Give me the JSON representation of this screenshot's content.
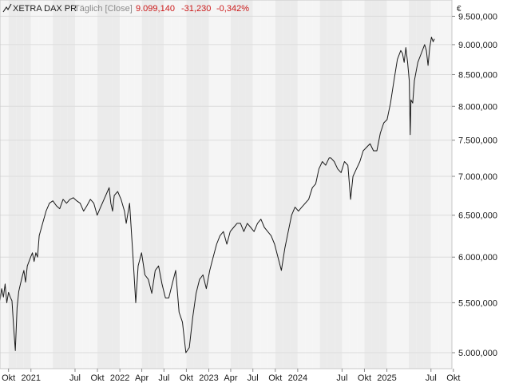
{
  "header": {
    "icon_name": "line-chart-icon",
    "instrument": "XETRA DAX PR",
    "mode": "Täglich [Close]",
    "last_value": "9.099,140",
    "change_abs": "-31,230",
    "change_pct": "-0,342%"
  },
  "colors": {
    "line": "#1a1a1a",
    "negative": "#cc1a1a",
    "mode_text": "#8a8a8a",
    "band_dark": "#ebebeb",
    "band_light": "#f5f5f5",
    "gridline": "#dcdcdc"
  },
  "chart_data": {
    "type": "line",
    "title": "XETRA DAX PR",
    "y_unit": "€",
    "y_scale": "log",
    "ylim": [
      4850,
      9800
    ],
    "xlim": [
      "2020-08-27",
      "2025-09-25"
    ],
    "grid": true,
    "y_ticks": [
      5000,
      5500,
      6000,
      6500,
      7000,
      7500,
      8000,
      8500,
      9000,
      9500
    ],
    "y_tick_labels": [
      "5.000,000",
      "5.500,000",
      "6.000,000",
      "6.500,000",
      "7.000,000",
      "7.500,000",
      "8.000,000",
      "8.500,000",
      "9.000,000",
      "9.500,000"
    ],
    "x_ticks": [
      {
        "date": "2020-10-01",
        "label": "Okt"
      },
      {
        "date": "2021-01-01",
        "label": "2021"
      },
      {
        "date": "2021-07-01",
        "label": "Jul"
      },
      {
        "date": "2021-10-01",
        "label": "Okt"
      },
      {
        "date": "2022-01-01",
        "label": "2022"
      },
      {
        "date": "2022-04-01",
        "label": "Apr"
      },
      {
        "date": "2022-07-01",
        "label": "Jul"
      },
      {
        "date": "2022-10-01",
        "label": "Okt"
      },
      {
        "date": "2023-01-01",
        "label": "2023"
      },
      {
        "date": "2023-04-01",
        "label": "Apr"
      },
      {
        "date": "2023-07-01",
        "label": "Jul"
      },
      {
        "date": "2023-10-01",
        "label": "Okt"
      },
      {
        "date": "2024-01-01",
        "label": "2024"
      },
      {
        "date": "2024-07-01",
        "label": "Jul"
      },
      {
        "date": "2024-10-01",
        "label": "Okt"
      },
      {
        "date": "2025-01-01",
        "label": "2025"
      },
      {
        "date": "2025-07-01",
        "label": "Jul"
      },
      {
        "date": "2025-10-01",
        "label": "Okt"
      }
    ],
    "series": [
      {
        "name": "XETRA DAX PR",
        "points": [
          [
            "2020-08-27",
            5520
          ],
          [
            "2020-09-03",
            5650
          ],
          [
            "2020-09-10",
            5560
          ],
          [
            "2020-09-17",
            5700
          ],
          [
            "2020-09-24",
            5500
          ],
          [
            "2020-10-01",
            5610
          ],
          [
            "2020-10-08",
            5560
          ],
          [
            "2020-10-15",
            5520
          ],
          [
            "2020-10-22",
            5250
          ],
          [
            "2020-10-29",
            5020
          ],
          [
            "2020-11-05",
            5450
          ],
          [
            "2020-11-12",
            5620
          ],
          [
            "2020-11-19",
            5700
          ],
          [
            "2020-11-26",
            5780
          ],
          [
            "2020-12-03",
            5850
          ],
          [
            "2020-12-10",
            5720
          ],
          [
            "2020-12-17",
            5900
          ],
          [
            "2020-12-31",
            6000
          ],
          [
            "2021-01-07",
            6050
          ],
          [
            "2021-01-14",
            5950
          ],
          [
            "2021-01-21",
            6050
          ],
          [
            "2021-01-28",
            6000
          ],
          [
            "2021-02-04",
            6250
          ],
          [
            "2021-02-18",
            6400
          ],
          [
            "2021-03-04",
            6550
          ],
          [
            "2021-03-18",
            6650
          ],
          [
            "2021-04-01",
            6680
          ],
          [
            "2021-04-15",
            6620
          ],
          [
            "2021-04-29",
            6580
          ],
          [
            "2021-05-13",
            6700
          ],
          [
            "2021-05-27",
            6650
          ],
          [
            "2021-06-10",
            6700
          ],
          [
            "2021-06-24",
            6720
          ],
          [
            "2021-07-08",
            6680
          ],
          [
            "2021-07-22",
            6650
          ],
          [
            "2021-08-05",
            6550
          ],
          [
            "2021-08-19",
            6620
          ],
          [
            "2021-09-02",
            6700
          ],
          [
            "2021-09-16",
            6650
          ],
          [
            "2021-09-30",
            6500
          ],
          [
            "2021-10-14",
            6600
          ],
          [
            "2021-10-28",
            6700
          ],
          [
            "2021-11-11",
            6800
          ],
          [
            "2021-11-18",
            6850
          ],
          [
            "2021-11-25",
            6650
          ],
          [
            "2021-12-02",
            6550
          ],
          [
            "2021-12-09",
            6750
          ],
          [
            "2021-12-23",
            6800
          ],
          [
            "2022-01-06",
            6700
          ],
          [
            "2022-01-20",
            6550
          ],
          [
            "2022-01-27",
            6400
          ],
          [
            "2022-02-10",
            6650
          ],
          [
            "2022-02-24",
            6000
          ],
          [
            "2022-03-07",
            5500
          ],
          [
            "2022-03-17",
            5900
          ],
          [
            "2022-03-31",
            6050
          ],
          [
            "2022-04-14",
            5800
          ],
          [
            "2022-04-28",
            5750
          ],
          [
            "2022-05-12",
            5600
          ],
          [
            "2022-05-26",
            5850
          ],
          [
            "2022-06-09",
            5900
          ],
          [
            "2022-06-23",
            5700
          ],
          [
            "2022-07-07",
            5550
          ],
          [
            "2022-07-21",
            5550
          ],
          [
            "2022-08-04",
            5700
          ],
          [
            "2022-08-18",
            5850
          ],
          [
            "2022-09-01",
            5400
          ],
          [
            "2022-09-15",
            5300
          ],
          [
            "2022-09-29",
            5000
          ],
          [
            "2022-10-13",
            5050
          ],
          [
            "2022-10-27",
            5350
          ],
          [
            "2022-11-10",
            5600
          ],
          [
            "2022-11-24",
            5750
          ],
          [
            "2022-12-08",
            5800
          ],
          [
            "2022-12-22",
            5650
          ],
          [
            "2023-01-05",
            5850
          ],
          [
            "2023-01-19",
            6000
          ],
          [
            "2023-02-02",
            6150
          ],
          [
            "2023-02-16",
            6250
          ],
          [
            "2023-03-02",
            6300
          ],
          [
            "2023-03-16",
            6150
          ],
          [
            "2023-03-30",
            6300
          ],
          [
            "2023-04-13",
            6350
          ],
          [
            "2023-04-27",
            6400
          ],
          [
            "2023-05-11",
            6400
          ],
          [
            "2023-05-25",
            6300
          ],
          [
            "2023-06-08",
            6400
          ],
          [
            "2023-06-22",
            6350
          ],
          [
            "2023-07-06",
            6300
          ],
          [
            "2023-07-20",
            6400
          ],
          [
            "2023-08-03",
            6450
          ],
          [
            "2023-08-17",
            6350
          ],
          [
            "2023-08-31",
            6300
          ],
          [
            "2023-09-14",
            6250
          ],
          [
            "2023-09-28",
            6150
          ],
          [
            "2023-10-12",
            6000
          ],
          [
            "2023-10-26",
            5850
          ],
          [
            "2023-11-09",
            6100
          ],
          [
            "2023-11-23",
            6300
          ],
          [
            "2023-12-07",
            6500
          ],
          [
            "2023-12-21",
            6600
          ],
          [
            "2024-01-04",
            6550
          ],
          [
            "2024-01-18",
            6600
          ],
          [
            "2024-02-01",
            6650
          ],
          [
            "2024-02-15",
            6700
          ],
          [
            "2024-03-01",
            6850
          ],
          [
            "2024-03-15",
            6900
          ],
          [
            "2024-03-28",
            7100
          ],
          [
            "2024-04-11",
            7200
          ],
          [
            "2024-04-25",
            7150
          ],
          [
            "2024-05-09",
            7250
          ],
          [
            "2024-05-16",
            7250
          ],
          [
            "2024-05-30",
            7200
          ],
          [
            "2024-06-13",
            7100
          ],
          [
            "2024-06-27",
            7050
          ],
          [
            "2024-07-11",
            7200
          ],
          [
            "2024-07-25",
            7150
          ],
          [
            "2024-08-05",
            6700
          ],
          [
            "2024-08-15",
            7000
          ],
          [
            "2024-08-29",
            7100
          ],
          [
            "2024-09-12",
            7200
          ],
          [
            "2024-09-26",
            7350
          ],
          [
            "2024-10-10",
            7400
          ],
          [
            "2024-10-24",
            7450
          ],
          [
            "2024-11-07",
            7350
          ],
          [
            "2024-11-21",
            7350
          ],
          [
            "2024-12-05",
            7600
          ],
          [
            "2024-12-19",
            7750
          ],
          [
            "2025-01-02",
            7800
          ],
          [
            "2025-01-16",
            8050
          ],
          [
            "2025-01-30",
            8400
          ],
          [
            "2025-02-13",
            8750
          ],
          [
            "2025-02-27",
            8900
          ],
          [
            "2025-03-06",
            8850
          ],
          [
            "2025-03-13",
            8700
          ],
          [
            "2025-03-20",
            8950
          ],
          [
            "2025-03-27",
            8700
          ],
          [
            "2025-04-03",
            8400
          ],
          [
            "2025-04-07",
            7580
          ],
          [
            "2025-04-10",
            8100
          ],
          [
            "2025-04-17",
            8050
          ],
          [
            "2025-04-24",
            8400
          ],
          [
            "2025-05-08",
            8700
          ],
          [
            "2025-05-22",
            8850
          ],
          [
            "2025-06-05",
            9000
          ],
          [
            "2025-06-12",
            8900
          ],
          [
            "2025-06-19",
            8650
          ],
          [
            "2025-06-26",
            8950
          ],
          [
            "2025-07-03",
            9130
          ],
          [
            "2025-07-10",
            9050
          ],
          [
            "2025-07-15",
            9099.14
          ]
        ]
      }
    ]
  }
}
